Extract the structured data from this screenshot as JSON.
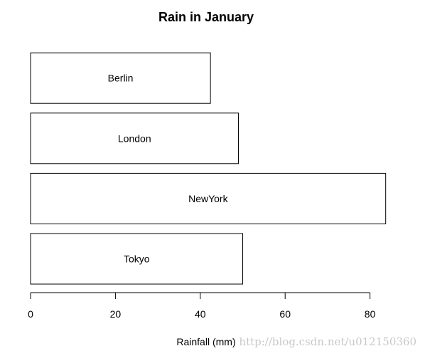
{
  "chart_data": {
    "type": "bar",
    "orientation": "horizontal",
    "title": "Rain in January",
    "xlabel": "Rainfall (mm)",
    "ylabel": "",
    "categories": [
      "Tokyo",
      "NewYork",
      "London",
      "Berlin"
    ],
    "values": [
      50,
      83.7,
      49,
      42.4
    ],
    "xlim": [
      0,
      84
    ],
    "x_ticks": [
      0,
      20,
      40,
      60,
      80
    ],
    "bar_fill": "#ffffff",
    "bar_border": "#000000",
    "labels_inside_bars": true,
    "grid": false,
    "legend": "none"
  },
  "watermark": "http://blog.csdn.net/u012150360"
}
